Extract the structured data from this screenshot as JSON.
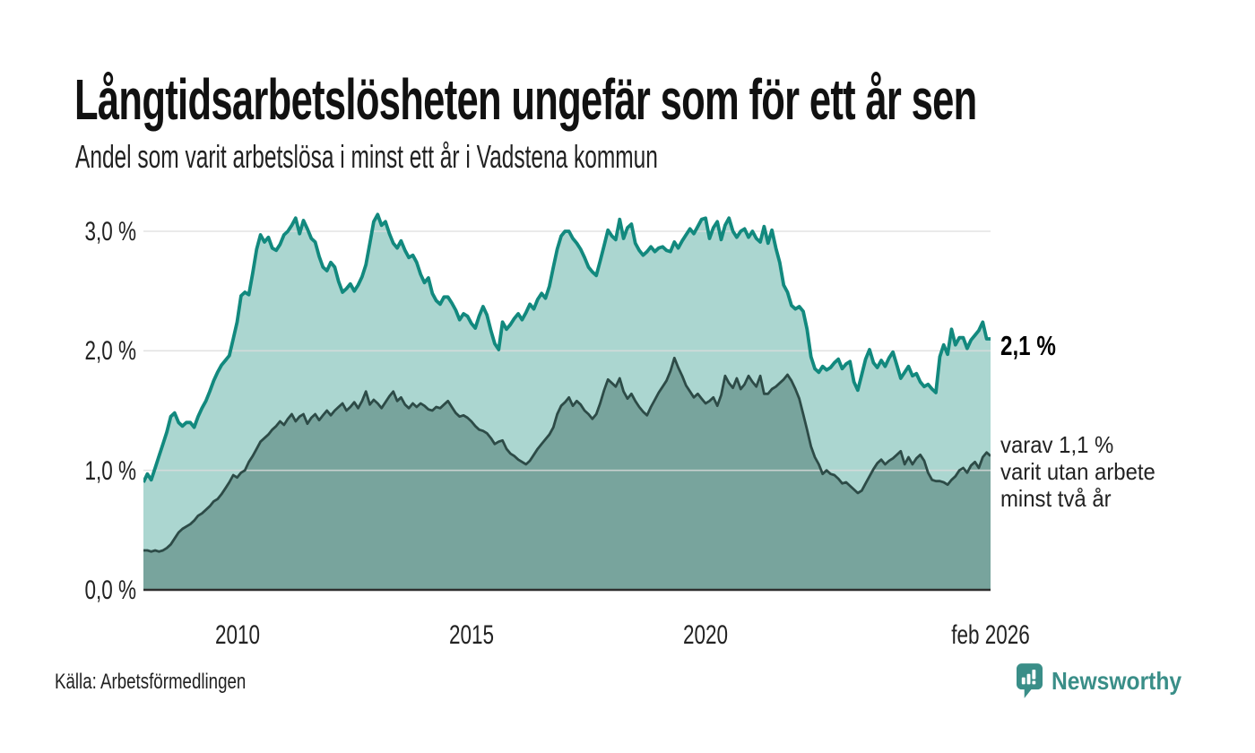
{
  "title": "Långtidsarbetslösheten ungefär som för ett år sen",
  "subtitle": "Andel som varit arbetslösa i minst ett år i Vadstena kommun",
  "source": "Källa: Arbetsförmedlingen",
  "logo": {
    "name": "Newsworthy",
    "icon": "bar-chart-pin-icon"
  },
  "annotations": {
    "latest_total": "2,1 %",
    "two_year_line1": "varav 1,1 %",
    "two_year_line2": "varit utan arbete",
    "two_year_line3": "minst två år"
  },
  "colors": {
    "background": "#ffffff",
    "title_text": "#111111",
    "body_text": "#222222",
    "brand_teal": "#3a8e88",
    "series1_line": "#12897e",
    "series1_fill": "#abd6d0",
    "series2_line": "#2d4b47",
    "series2_fill": "#78a49d",
    "gridline": "#dcdcdc",
    "baseline": "#2f2f2f"
  },
  "chart_data": {
    "type": "area",
    "title": "Långtidsarbetslösheten ungefär som för ett år sen",
    "subtitle": "Andel som varit arbetslösa i minst ett år i Vadstena kommun",
    "x_start_year": 2008,
    "x_start_month": 1,
    "step_months": 1,
    "x_end_label": "feb 2026",
    "ylim": [
      0,
      3.3
    ],
    "grid": true,
    "legend": "none",
    "yticks": [
      {
        "label": "0,0 %",
        "value": 0
      },
      {
        "label": "1,0 %",
        "value": 1
      },
      {
        "label": "2,0 %",
        "value": 2
      },
      {
        "label": "3,0 %",
        "value": 3
      }
    ],
    "xticks": [
      {
        "label": "2010",
        "year": 2010.0
      },
      {
        "label": "2015",
        "year": 2015.0
      },
      {
        "label": "2020",
        "year": 2020.0
      },
      {
        "label": "feb 2026",
        "year": 2026.083
      }
    ],
    "series": [
      {
        "name": "Andel arbetslösa minst ett år",
        "latest_value": 2.1,
        "line_color": "#12897e",
        "fill_color": "#abd6d0",
        "values": [
          0.9,
          0.97,
          0.92,
          1.02,
          1.12,
          1.22,
          1.32,
          1.45,
          1.48,
          1.4,
          1.37,
          1.4,
          1.4,
          1.36,
          1.45,
          1.52,
          1.58,
          1.66,
          1.75,
          1.82,
          1.88,
          1.92,
          1.96,
          2.1,
          2.24,
          2.46,
          2.49,
          2.47,
          2.65,
          2.85,
          2.97,
          2.91,
          2.95,
          2.86,
          2.84,
          2.89,
          2.97,
          3.0,
          3.05,
          3.11,
          2.98,
          3.09,
          3.02,
          2.94,
          2.91,
          2.79,
          2.7,
          2.67,
          2.74,
          2.7,
          2.58,
          2.49,
          2.52,
          2.56,
          2.5,
          2.55,
          2.62,
          2.72,
          2.9,
          3.08,
          3.14,
          3.05,
          3.08,
          2.98,
          2.9,
          2.86,
          2.92,
          2.84,
          2.78,
          2.8,
          2.74,
          2.64,
          2.57,
          2.61,
          2.48,
          2.42,
          2.39,
          2.45,
          2.45,
          2.4,
          2.34,
          2.26,
          2.31,
          2.29,
          2.23,
          2.19,
          2.29,
          2.37,
          2.3,
          2.17,
          2.06,
          2.01,
          2.24,
          2.18,
          2.22,
          2.27,
          2.31,
          2.26,
          2.32,
          2.39,
          2.35,
          2.43,
          2.48,
          2.44,
          2.54,
          2.7,
          2.85,
          2.96,
          3.0,
          3.0,
          2.94,
          2.9,
          2.85,
          2.78,
          2.7,
          2.66,
          2.63,
          2.75,
          2.88,
          3.01,
          2.96,
          2.93,
          3.1,
          2.94,
          3.03,
          3.06,
          2.9,
          2.84,
          2.8,
          2.83,
          2.87,
          2.83,
          2.86,
          2.87,
          2.84,
          2.83,
          2.91,
          2.86,
          2.92,
          2.97,
          3.02,
          2.98,
          3.04,
          3.1,
          3.11,
          2.94,
          3.03,
          3.08,
          2.93,
          3.05,
          3.11,
          3.0,
          2.95,
          3.0,
          3.02,
          2.95,
          3.0,
          2.94,
          2.91,
          3.04,
          2.9,
          3.01,
          2.86,
          2.74,
          2.55,
          2.49,
          2.38,
          2.35,
          2.37,
          2.33,
          2.18,
          1.95,
          1.85,
          1.82,
          1.87,
          1.84,
          1.86,
          1.9,
          1.93,
          1.85,
          1.89,
          1.91,
          1.74,
          1.67,
          1.8,
          1.93,
          2.01,
          1.9,
          1.86,
          1.92,
          1.87,
          1.94,
          1.99,
          1.88,
          1.77,
          1.82,
          1.87,
          1.79,
          1.81,
          1.74,
          1.7,
          1.72,
          1.68,
          1.65,
          1.95,
          2.05,
          1.97,
          2.18,
          2.05,
          2.11,
          2.11,
          2.02,
          2.09,
          2.13,
          2.17,
          2.24,
          2.1,
          2.1
        ]
      },
      {
        "name": "varav utan arbete minst två år",
        "latest_value": 1.1,
        "line_color": "#2d4b47",
        "fill_color": "#78a49d",
        "values": [
          0.33,
          0.33,
          0.32,
          0.33,
          0.32,
          0.33,
          0.35,
          0.38,
          0.43,
          0.48,
          0.51,
          0.53,
          0.55,
          0.58,
          0.62,
          0.64,
          0.67,
          0.7,
          0.74,
          0.76,
          0.8,
          0.85,
          0.9,
          0.96,
          0.94,
          0.98,
          1.0,
          1.07,
          1.12,
          1.18,
          1.24,
          1.27,
          1.3,
          1.34,
          1.37,
          1.41,
          1.38,
          1.43,
          1.47,
          1.41,
          1.45,
          1.47,
          1.39,
          1.44,
          1.47,
          1.42,
          1.46,
          1.5,
          1.46,
          1.5,
          1.53,
          1.56,
          1.5,
          1.53,
          1.57,
          1.52,
          1.58,
          1.66,
          1.55,
          1.59,
          1.56,
          1.52,
          1.57,
          1.62,
          1.66,
          1.58,
          1.61,
          1.55,
          1.52,
          1.56,
          1.53,
          1.56,
          1.54,
          1.51,
          1.5,
          1.53,
          1.52,
          1.55,
          1.58,
          1.53,
          1.48,
          1.45,
          1.46,
          1.44,
          1.41,
          1.37,
          1.34,
          1.33,
          1.31,
          1.27,
          1.22,
          1.24,
          1.25,
          1.18,
          1.14,
          1.12,
          1.09,
          1.07,
          1.05,
          1.08,
          1.13,
          1.18,
          1.22,
          1.26,
          1.3,
          1.36,
          1.47,
          1.54,
          1.57,
          1.61,
          1.54,
          1.58,
          1.55,
          1.5,
          1.47,
          1.43,
          1.47,
          1.56,
          1.67,
          1.76,
          1.73,
          1.7,
          1.77,
          1.66,
          1.6,
          1.64,
          1.58,
          1.53,
          1.49,
          1.46,
          1.53,
          1.59,
          1.65,
          1.7,
          1.75,
          1.83,
          1.94,
          1.86,
          1.79,
          1.71,
          1.66,
          1.61,
          1.64,
          1.6,
          1.56,
          1.58,
          1.61,
          1.54,
          1.63,
          1.79,
          1.73,
          1.69,
          1.77,
          1.68,
          1.72,
          1.79,
          1.74,
          1.7,
          1.79,
          1.64,
          1.64,
          1.68,
          1.7,
          1.73,
          1.76,
          1.8,
          1.75,
          1.68,
          1.6,
          1.47,
          1.34,
          1.2,
          1.11,
          1.05,
          0.97,
          1.0,
          0.97,
          0.96,
          0.93,
          0.89,
          0.9,
          0.87,
          0.84,
          0.81,
          0.83,
          0.89,
          0.95,
          1.01,
          1.06,
          1.09,
          1.05,
          1.08,
          1.1,
          1.13,
          1.16,
          1.05,
          1.11,
          1.05,
          1.1,
          1.13,
          1.08,
          0.98,
          0.92,
          0.91,
          0.91,
          0.9,
          0.88,
          0.92,
          0.95,
          1.0,
          1.02,
          0.98,
          1.04,
          1.07,
          1.02,
          1.11,
          1.15,
          1.12
        ]
      }
    ]
  }
}
